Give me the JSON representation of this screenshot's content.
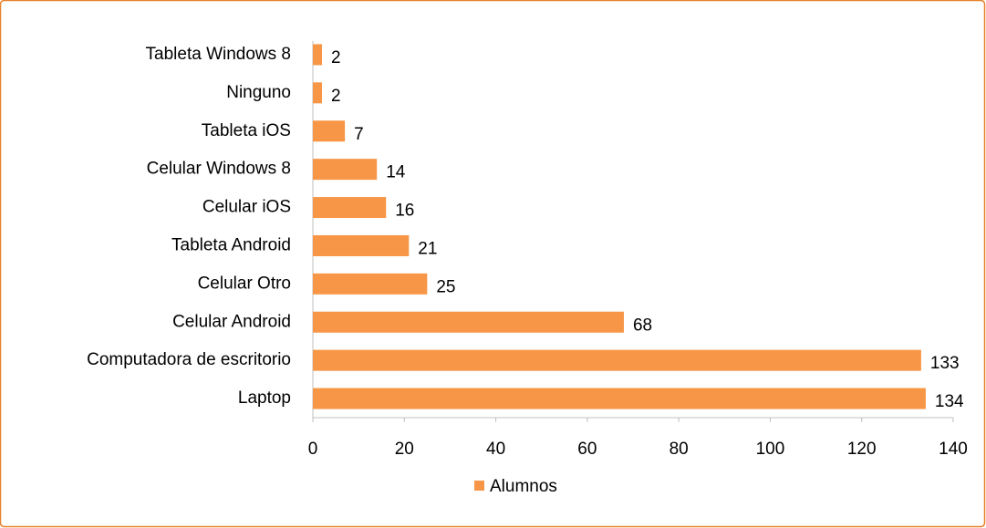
{
  "chart_data": {
    "type": "bar",
    "orientation": "horizontal",
    "categories": [
      "Laptop",
      "Computadora de escritorio",
      "Celular Android",
      "Celular  Otro",
      "Tableta Android",
      "Celular iOS",
      "Celular Windows 8",
      "Tableta iOS",
      "Ninguno",
      "Tableta Windows 8"
    ],
    "series": [
      {
        "name": "Alumnos",
        "color": "#f79646",
        "values": [
          134,
          133,
          68,
          25,
          21,
          16,
          14,
          7,
          2,
          2
        ]
      }
    ],
    "xlim": [
      0,
      140
    ],
    "xticks": [
      0,
      20,
      40,
      60,
      80,
      100,
      120,
      140
    ],
    "legend": "bottom",
    "grid": false
  }
}
